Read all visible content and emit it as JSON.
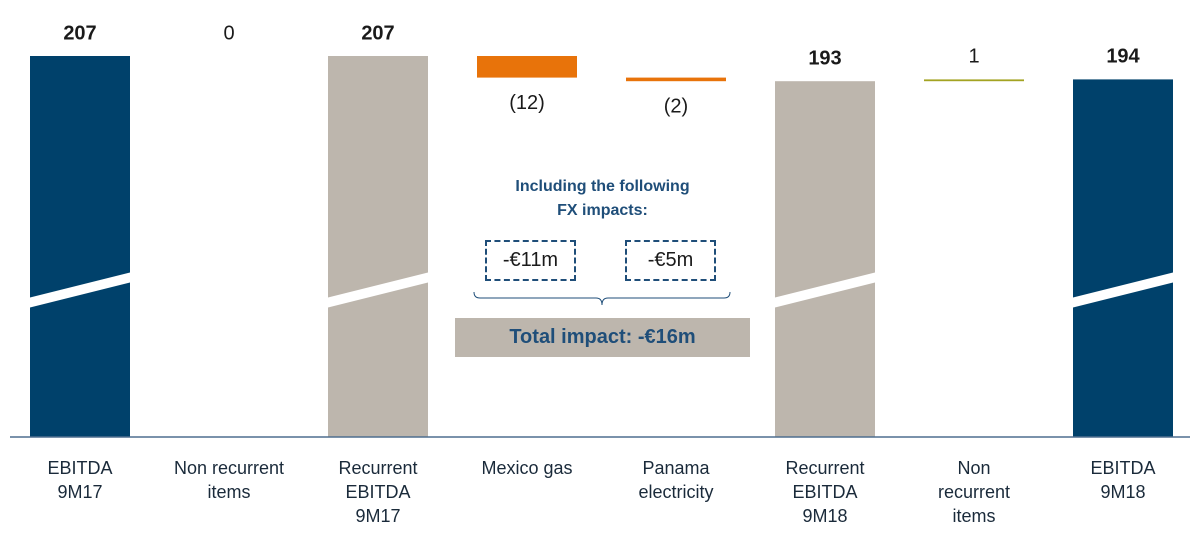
{
  "chart_data": {
    "type": "waterfall",
    "categories": [
      "EBITDA\n9M17",
      "Non recurrent\nitems",
      "Recurrent\nEBITDA\n9M17",
      "Mexico gas",
      "Panama\nelectricity",
      "Recurrent\nEBITDA\n9M18",
      "Non\nrecurrent\nitems",
      "EBITDA\n9M18"
    ],
    "values": [
      207,
      0,
      207,
      -12,
      -2,
      193,
      1,
      194
    ],
    "value_labels": [
      "207",
      "0",
      "207",
      "(12)",
      "(2)",
      "193",
      "1",
      "194"
    ],
    "kinds": [
      "total",
      "delta",
      "total",
      "delta",
      "delta",
      "total",
      "delta",
      "total"
    ],
    "colors": [
      "#00416b",
      "#a3a322",
      "#bdb6ad",
      "#e8730a",
      "#e8730a",
      "#bdb6ad",
      "#a3a322",
      "#00416b"
    ],
    "broken_axis": true,
    "annotations": {
      "heading": "Including the following\nFX impacts:",
      "impacts": [
        "-€11m",
        "-€5m"
      ],
      "total": "Total impact: -€16m"
    }
  }
}
